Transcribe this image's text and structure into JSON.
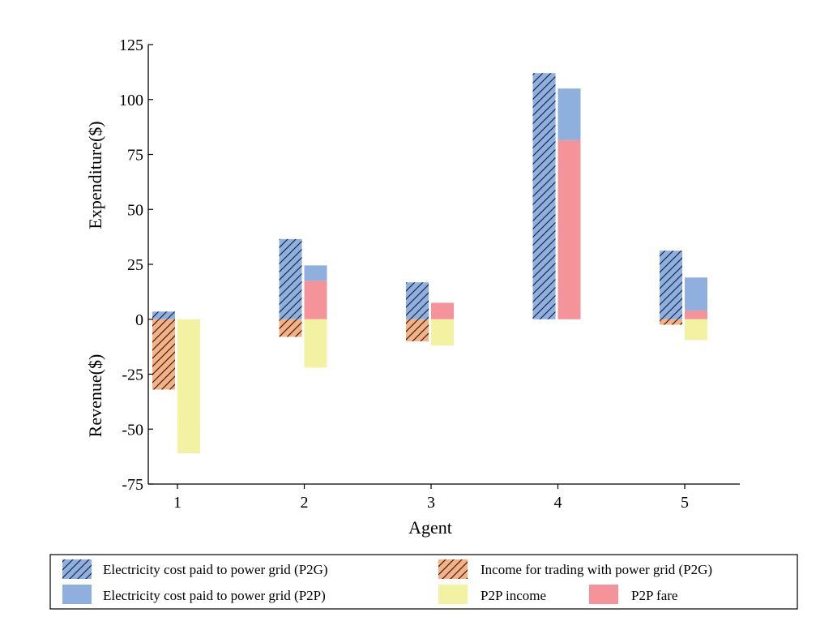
{
  "chart_data": {
    "type": "bar",
    "xlabel": "Agent",
    "ylabel_top": "Expenditure($)",
    "ylabel_bottom": "Revenue($)",
    "ylim": [
      -75,
      125
    ],
    "yticks": [
      125,
      100,
      75,
      50,
      25,
      0,
      -25,
      -50,
      -75
    ],
    "ytick_labels": [
      "125",
      "100",
      "75",
      "50",
      "25",
      "0",
      "-25",
      "-50",
      "-75"
    ],
    "categories": [
      "1",
      "2",
      "3",
      "4",
      "5"
    ],
    "series": [
      {
        "name": "Electricity cost paid to power grid (P2G)",
        "key": "p2g_cost",
        "bar": "left",
        "color": "#8fb0de",
        "hatch": true,
        "values": [
          3.5,
          36.5,
          16.8,
          112,
          31.2
        ]
      },
      {
        "name": "Income for trading with power grid (P2G)",
        "key": "p2g_income",
        "bar": "left",
        "color": "#f4b183",
        "hatch": true,
        "values": [
          -32,
          -8,
          -10,
          0,
          -2.5
        ]
      },
      {
        "name": "Electricity cost paid to power grid (P2P)",
        "key": "p2p_cost",
        "bar": "right",
        "color": "#8fb0de",
        "hatch": false,
        "values": [
          0,
          7,
          0,
          23.5,
          15
        ]
      },
      {
        "name": "P2P income",
        "key": "p2p_income",
        "bar": "right",
        "color": "#f2f2a2",
        "hatch": false,
        "values": [
          -61,
          -22,
          -12,
          0,
          -9.5
        ]
      },
      {
        "name": "P2P fare",
        "key": "p2p_fare",
        "bar": "right",
        "color": "#f4939a",
        "hatch": false,
        "values": [
          0,
          17.5,
          7.5,
          81.5,
          4
        ]
      }
    ],
    "legend_position": "bottom",
    "legend": [
      "Electricity cost paid to power grid (P2G)",
      "Income for trading with power grid (P2G)",
      "Electricity cost paid to power grid (P2P)",
      "P2P income",
      "P2P fare"
    ]
  }
}
